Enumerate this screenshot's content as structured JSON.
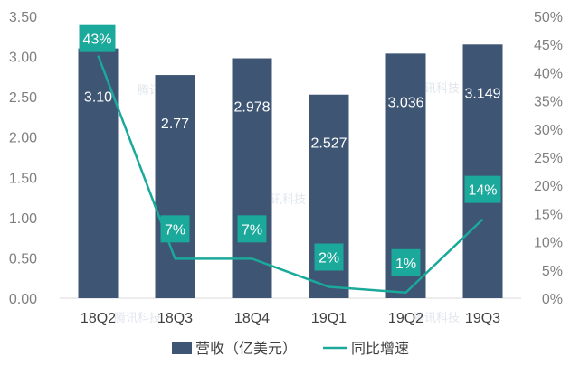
{
  "chart_data": {
    "type": "bar",
    "categories": [
      "18Q2",
      "18Q3",
      "18Q4",
      "19Q1",
      "19Q2",
      "19Q3"
    ],
    "series": [
      {
        "name": "营收（亿美元）",
        "type": "bar",
        "axis": "left",
        "values": [
          3.1,
          2.77,
          2.978,
          2.527,
          3.036,
          3.149
        ],
        "labels": [
          "3.10",
          "2.77",
          "2.978",
          "2.527",
          "3.036",
          "3.149"
        ],
        "color": "#3e5573"
      },
      {
        "name": "同比增速",
        "type": "line",
        "axis": "right",
        "values": [
          43,
          7,
          7,
          2,
          1,
          14
        ],
        "labels": [
          "43%",
          "7%",
          "7%",
          "2%",
          "1%",
          "14%"
        ],
        "color": "#1aa99a"
      }
    ],
    "left_axis": {
      "min": 0,
      "max": 3.5,
      "step": 0.5,
      "tick_labels": [
        "0.00",
        "0.50",
        "1.00",
        "1.50",
        "2.00",
        "2.50",
        "3.00",
        "3.50"
      ]
    },
    "right_axis": {
      "min": 0,
      "max": 50,
      "step": 5,
      "tick_labels": [
        "0%",
        "5%",
        "10%",
        "15%",
        "20%",
        "25%",
        "30%",
        "35%",
        "40%",
        "45%",
        "50%"
      ]
    },
    "legend_position": "bottom",
    "grid": false,
    "watermark": "腾讯科技"
  }
}
